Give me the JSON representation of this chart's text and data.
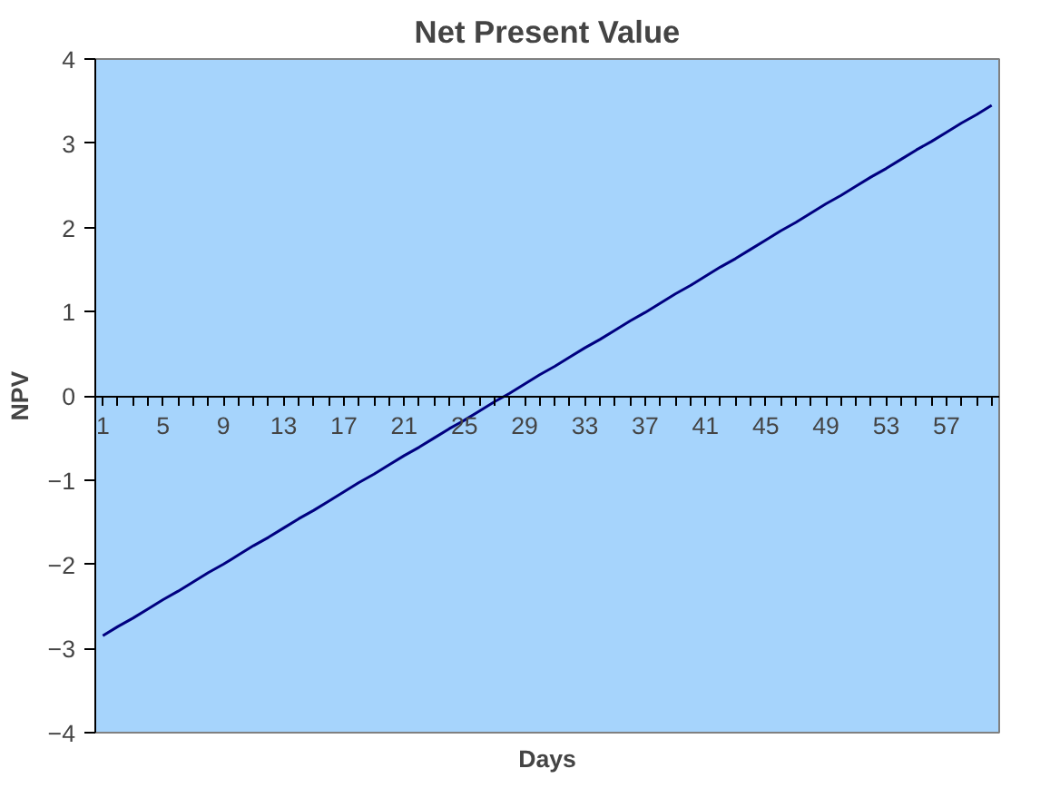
{
  "chart_data": {
    "type": "line",
    "title": "Net Present Value",
    "xlabel": "Days",
    "ylabel": "NPV",
    "categories": [
      "1",
      null,
      null,
      null,
      "5",
      null,
      null,
      null,
      "9",
      null,
      null,
      null,
      "13",
      null,
      null,
      null,
      "17",
      null,
      null,
      null,
      "21",
      null,
      null,
      null,
      "25",
      null,
      null,
      null,
      "29",
      null,
      null,
      null,
      "33",
      null,
      null,
      null,
      "37",
      null,
      null,
      null,
      "41",
      null,
      null,
      null,
      "45",
      null,
      null,
      null,
      "49",
      null,
      null,
      null,
      "53",
      null,
      null,
      null,
      "57",
      null,
      null,
      null
    ],
    "series": [
      {
        "color": "#000080",
        "values": [
          -2.85,
          -2.74,
          -2.64,
          -2.53,
          -2.42,
          -2.32,
          -2.21,
          -2.1,
          -2.0,
          -1.89,
          -1.78,
          -1.68,
          -1.57,
          -1.46,
          -1.36,
          -1.25,
          -1.14,
          -1.03,
          -0.93,
          -0.82,
          -0.71,
          -0.61,
          -0.5,
          -0.39,
          -0.29,
          -0.18,
          -0.07,
          0.03,
          0.14,
          0.25,
          0.35,
          0.46,
          0.57,
          0.67,
          0.78,
          0.89,
          0.99,
          1.1,
          1.21,
          1.31,
          1.42,
          1.53,
          1.63,
          1.74,
          1.85,
          1.96,
          2.06,
          2.17,
          2.28,
          2.38,
          2.49,
          2.6,
          2.7,
          2.81,
          2.92,
          3.02,
          3.13,
          3.24,
          3.34,
          3.45
        ]
      }
    ],
    "ylim": [
      -4,
      4
    ],
    "yticks": [
      -4,
      -3,
      -2,
      -1,
      0,
      1,
      2,
      3,
      4
    ],
    "grid": false,
    "marker": "none",
    "line_style": "solid"
  }
}
